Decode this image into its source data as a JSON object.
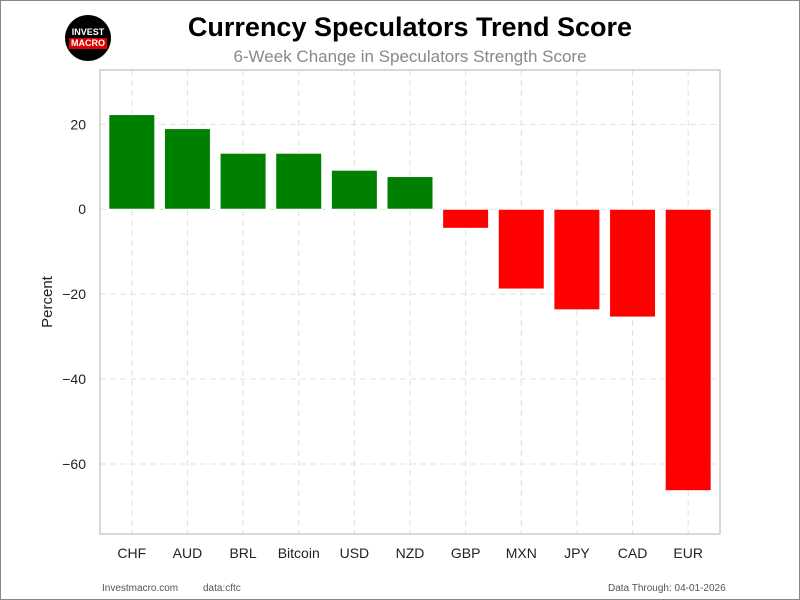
{
  "header": {
    "title": "Currency Speculators Trend Score",
    "subtitle": "6-Week Change in Speculators Strength Score"
  },
  "logo": {
    "line1": "INVEST",
    "line2": "MACRO"
  },
  "footer": {
    "site": "Investmacro.com",
    "source": "data:cftc",
    "date": "Data Through: 04-01-2026"
  },
  "chart_data": {
    "type": "bar",
    "title": "Currency Speculators Trend Score",
    "subtitle": "6-Week Change in Speculators Strength Score",
    "xlabel": "",
    "ylabel": "Percent",
    "categories": [
      "CHF",
      "AUD",
      "BRL",
      "Bitcoin",
      "USD",
      "NZD",
      "GBP",
      "MXN",
      "JPY",
      "CAD",
      "EUR"
    ],
    "values": [
      22.3,
      19.0,
      13.2,
      13.2,
      9.2,
      7.7,
      -4.5,
      -18.8,
      -23.7,
      -25.4,
      -66.3
    ],
    "ylim": [
      -76.5,
      32.8
    ],
    "yticks": [
      20,
      0,
      -20,
      -40,
      -60
    ],
    "ytick_labels": [
      "20",
      "0",
      "−20",
      "−40",
      "−60"
    ],
    "grid": true,
    "colors": {
      "positive": "#008000",
      "negative": "#ff0000"
    }
  }
}
